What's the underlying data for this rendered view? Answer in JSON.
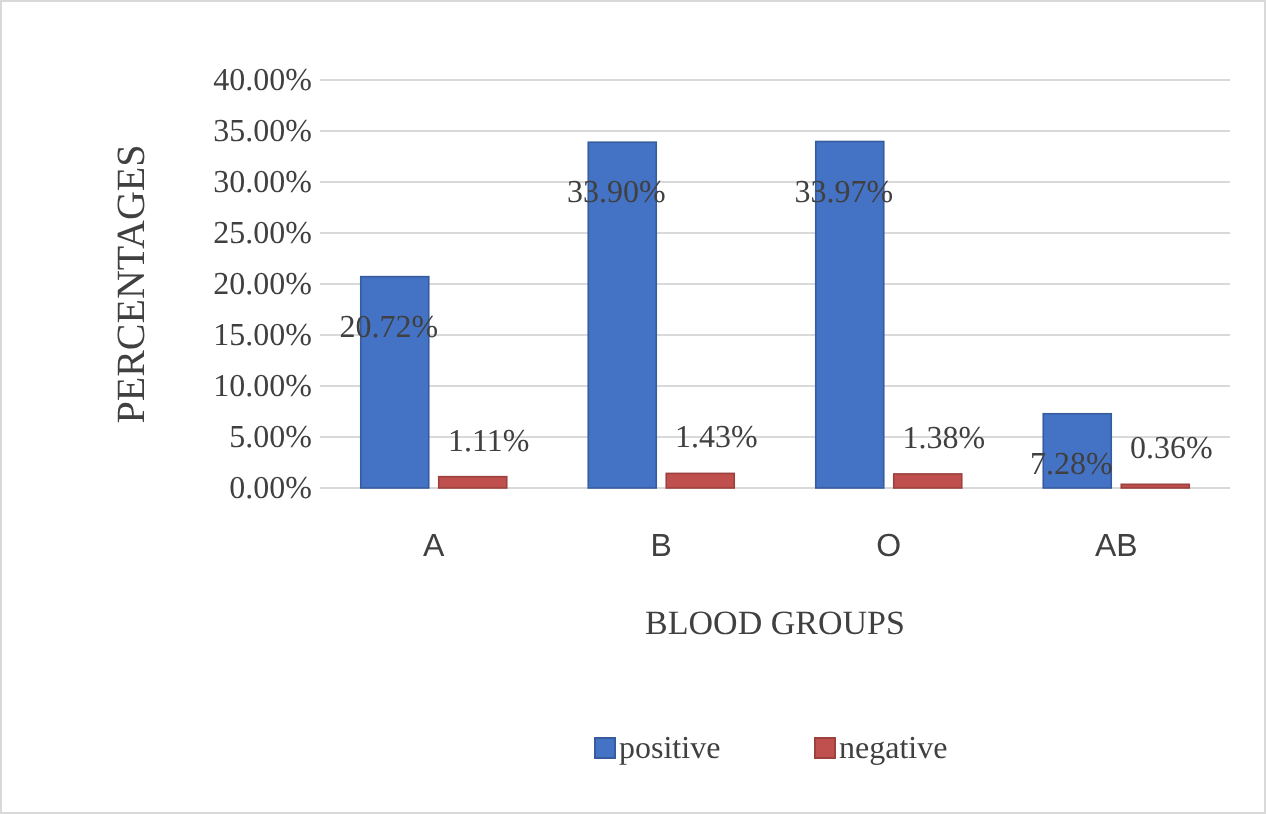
{
  "chart_data": {
    "type": "bar",
    "xlabel": "BLOOD GROUPS",
    "ylabel": "PERCENTAGES",
    "categories": [
      "A",
      "B",
      "O",
      "AB"
    ],
    "series": [
      {
        "name": "positive",
        "color": "#4472c4",
        "values": [
          20.72,
          33.9,
          33.97,
          7.28
        ],
        "value_labels": [
          "20.72%",
          "33.90%",
          "33.97%",
          "7.28%"
        ]
      },
      {
        "name": "negative",
        "color": "#c0504d",
        "values": [
          1.11,
          1.43,
          1.38,
          0.36
        ],
        "value_labels": [
          "1.11%",
          "1.43%",
          "1.38%",
          "0.36%"
        ]
      }
    ],
    "ylim": [
      0,
      40
    ],
    "yticks": [
      {
        "value": 0,
        "label": "0.00%"
      },
      {
        "value": 5,
        "label": "5.00%"
      },
      {
        "value": 10,
        "label": "10.00%"
      },
      {
        "value": 15,
        "label": "15.00%"
      },
      {
        "value": 20,
        "label": "20.00%"
      },
      {
        "value": 25,
        "label": "25.00%"
      },
      {
        "value": 30,
        "label": "30.00%"
      },
      {
        "value": 35,
        "label": "35.00%"
      },
      {
        "value": 40,
        "label": "40.00%"
      }
    ],
    "grid": "y",
    "legend": "bottom"
  }
}
